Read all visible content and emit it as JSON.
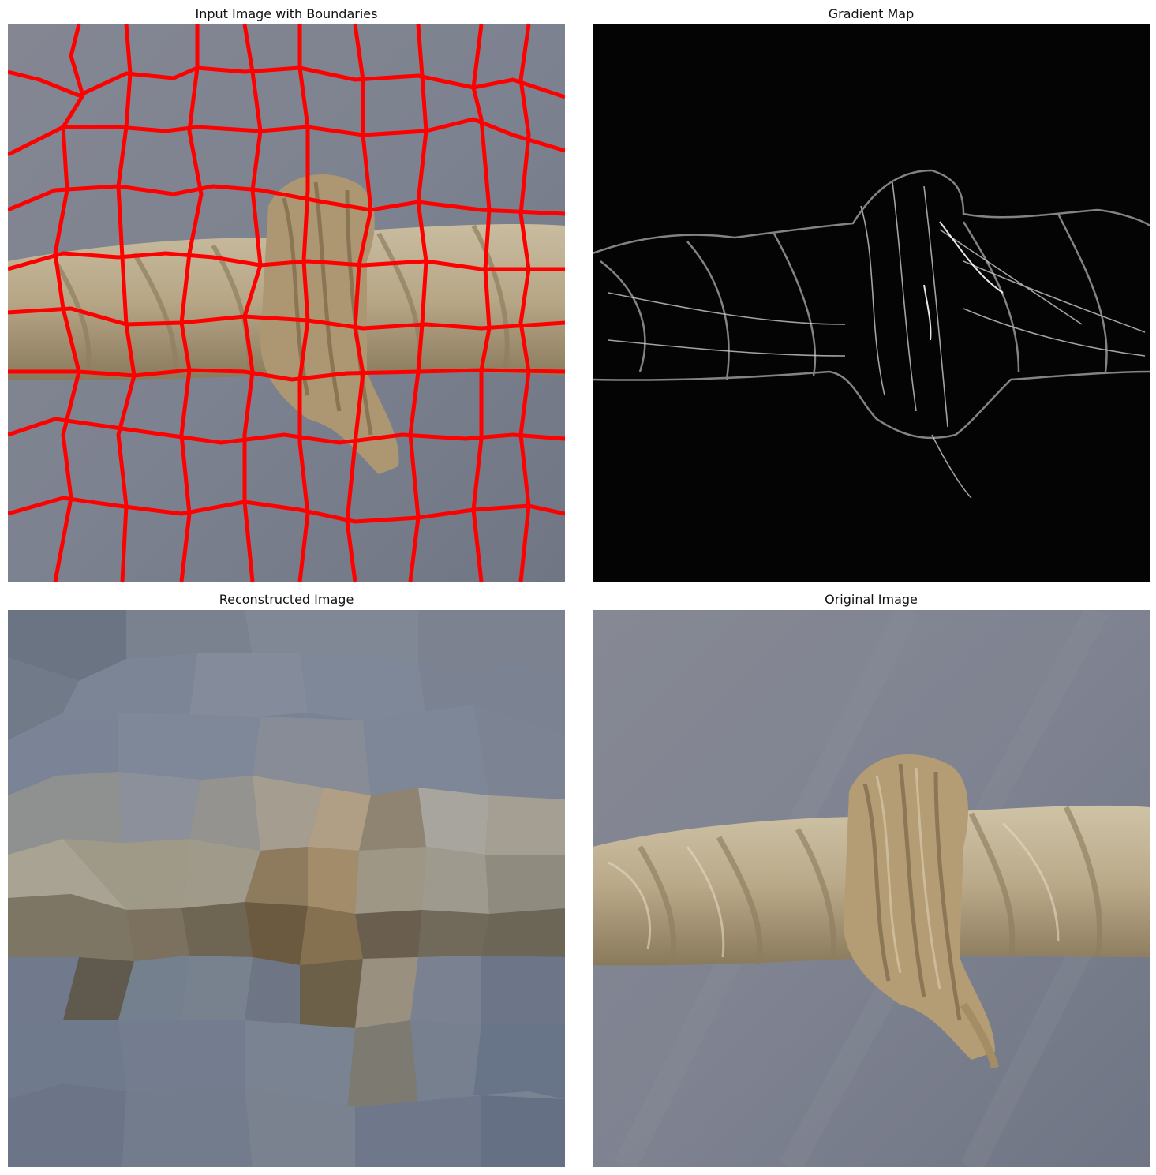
{
  "panels": {
    "boundaries": {
      "title": "Input Image with Boundaries"
    },
    "gradient": {
      "title": "Gradient Map"
    },
    "reconstructed": {
      "title": "Reconstructed Image"
    },
    "original": {
      "title": "Original Image"
    }
  },
  "colors": {
    "background_gray": "#7f8491",
    "rope_tan": "#b9a98a",
    "rope_shadow": "#6f634c",
    "boundary_red": "#ff0000",
    "gradient_black": "#050505",
    "gradient_line": "#bdbdbd"
  }
}
